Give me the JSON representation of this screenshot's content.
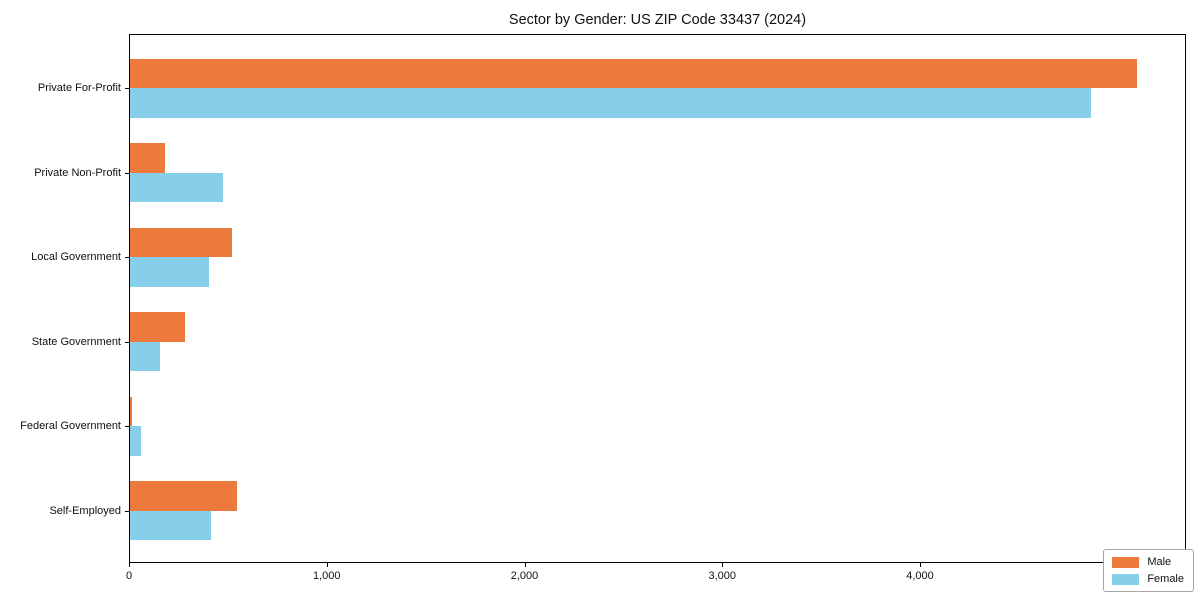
{
  "chart_data": {
    "type": "bar",
    "orientation": "horizontal",
    "title": "Sector by Gender: US ZIP Code 33437 (2024)",
    "categories": [
      "Private For-Profit",
      "Private Non-Profit",
      "Local Government",
      "State Government",
      "Federal Government",
      "Self-Employed"
    ],
    "series": [
      {
        "name": "Male",
        "color": "#ec7a3c",
        "values": [
          5090,
          175,
          515,
          277,
          8,
          540
        ]
      },
      {
        "name": "Female",
        "color": "#87ceeb",
        "values": [
          4860,
          470,
          400,
          150,
          57,
          410
        ]
      }
    ],
    "xlabel": "",
    "ylabel": "",
    "xlim": [
      0,
      5345
    ],
    "xticks": {
      "values": [
        0,
        1000,
        2000,
        3000,
        4000,
        5000
      ],
      "labels": [
        "0",
        "1,000",
        "2,000",
        "3,000",
        "4,000",
        "5,000"
      ]
    },
    "grid": false,
    "legend_position": "lower right",
    "background": "#ffffff",
    "axis_color": "#000000"
  }
}
